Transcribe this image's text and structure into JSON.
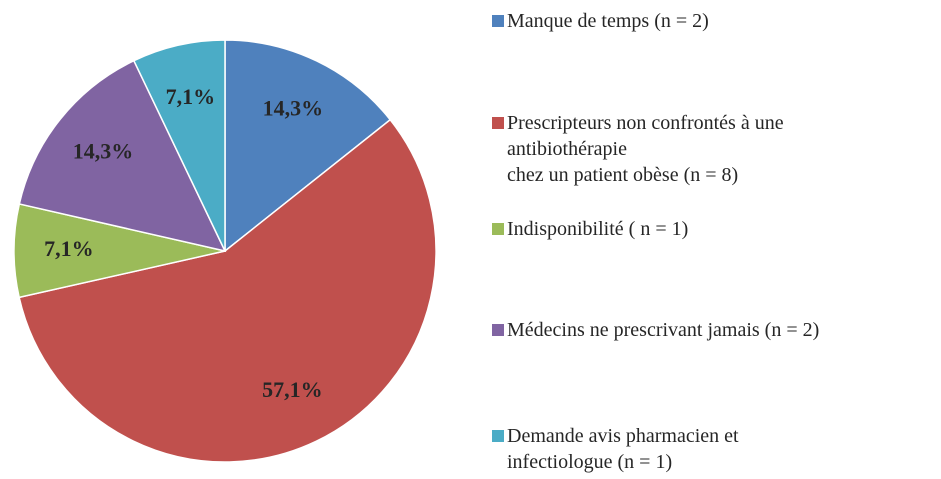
{
  "chart_data": {
    "type": "pie",
    "categories": [
      "Manque de temps (n = 2)",
      "Prescripteurs non confrontés à une\nantibiothérapie\nchez un patient obèse (n = 8)",
      "Indisponibilité ( n = 1)",
      "Médecins ne prescrivant jamais (n = 2)",
      "Demande avis pharmacien et\ninfectiologue (n = 1)"
    ],
    "values": [
      14.3,
      57.1,
      7.1,
      14.3,
      7.1
    ],
    "value_labels": [
      "14,3%",
      "57,1%",
      "7,1%",
      "14,3%",
      "7,1%"
    ],
    "colors": [
      "#4f81bd",
      "#c0504d",
      "#9bbb59",
      "#8064a2",
      "#4bacc6"
    ],
    "legend": "right"
  }
}
